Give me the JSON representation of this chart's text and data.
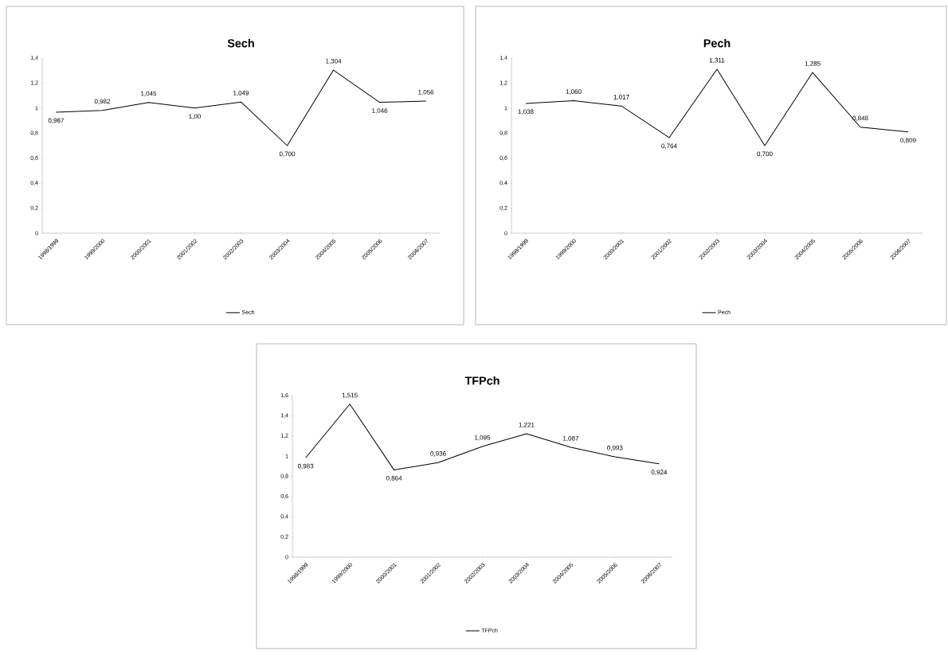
{
  "chart_data": [
    {
      "type": "line",
      "title": "Sech",
      "categories": [
        "1998/1999",
        "1999/2000",
        "2000/2001",
        "2001/2002",
        "2002/2003",
        "2003/2004",
        "2004/2005",
        "2005/2006",
        "2006/2007"
      ],
      "series": [
        {
          "name": "Sech",
          "color": "#000000",
          "values": [
            0.967,
            0.982,
            1.045,
            1.0,
            1.049,
            0.7,
            1.304,
            1.046,
            1.056
          ],
          "value_labels": [
            "0,967",
            "0,982",
            "1,045",
            "1,00",
            "1,049",
            "0,700",
            "1,304",
            "1,046",
            "1,056"
          ]
        }
      ],
      "ylim": [
        0,
        1.4
      ],
      "yticks": [
        0,
        {
          "value": 0.2,
          "label": "0,2"
        },
        {
          "value": 0.4,
          "label": "0,4"
        },
        {
          "value": 0.6,
          "label": "0,6"
        },
        {
          "value": 0.8,
          "label": "0,8"
        },
        1,
        {
          "value": 1.2,
          "label": "1,2"
        },
        {
          "value": 1.4,
          "label": "1,4"
        }
      ],
      "legend": "bottom"
    },
    {
      "type": "line",
      "title": "Pech",
      "categories": [
        "1998/1999",
        "1999/2000",
        "2000/2001",
        "2001/2002",
        "2002/2003",
        "2003/2004",
        "2004/2005",
        "2005/2006",
        "2006/2007"
      ],
      "series": [
        {
          "name": "Pech",
          "color": "#000000",
          "values": [
            1.038,
            1.06,
            1.017,
            0.764,
            1.311,
            0.7,
            1.285,
            0.848,
            0.809
          ],
          "value_labels": [
            "1,038",
            "1,060",
            "1,017",
            "0,764",
            "1,311",
            "0,700",
            "1,285",
            "0,848",
            "0,809"
          ]
        }
      ],
      "ylim": [
        0,
        1.4
      ],
      "yticks": [
        0,
        {
          "value": 0.2,
          "label": "0,2"
        },
        {
          "value": 0.4,
          "label": "0,4"
        },
        {
          "value": 0.6,
          "label": "0,6"
        },
        {
          "value": 0.8,
          "label": "0,8"
        },
        1,
        {
          "value": 1.2,
          "label": "1,2"
        },
        {
          "value": 1.4,
          "label": "1,4"
        }
      ],
      "legend": "bottom"
    },
    {
      "type": "line",
      "title": "TFPch",
      "categories": [
        "1998/1999",
        "1999/2000",
        "2000/2001",
        "2001/2002",
        "2002/2003",
        "2003/2004",
        "2004/2005",
        "2005/2006",
        "2006/2007"
      ],
      "series": [
        {
          "name": "TFPch",
          "color": "#000000",
          "values": [
            0.983,
            1.515,
            0.864,
            0.936,
            1.095,
            1.221,
            1.087,
            0.993,
            0.924
          ],
          "value_labels": [
            "0,983",
            "1,515",
            "0,864",
            "0,936",
            "1,095",
            "1,221",
            "1,087",
            "0,993",
            "0,924"
          ]
        }
      ],
      "ylim": [
        0,
        1.6
      ],
      "yticks": [
        0,
        {
          "value": 0.2,
          "label": "0,2"
        },
        {
          "value": 0.4,
          "label": "0,4"
        },
        {
          "value": 0.6,
          "label": "0,6"
        },
        {
          "value": 0.8,
          "label": "0,8"
        },
        1,
        {
          "value": 1.2,
          "label": "1,2"
        },
        {
          "value": 1.4,
          "label": "1,4"
        },
        {
          "value": 1.6,
          "label": "1,6"
        }
      ],
      "legend": "bottom"
    }
  ]
}
